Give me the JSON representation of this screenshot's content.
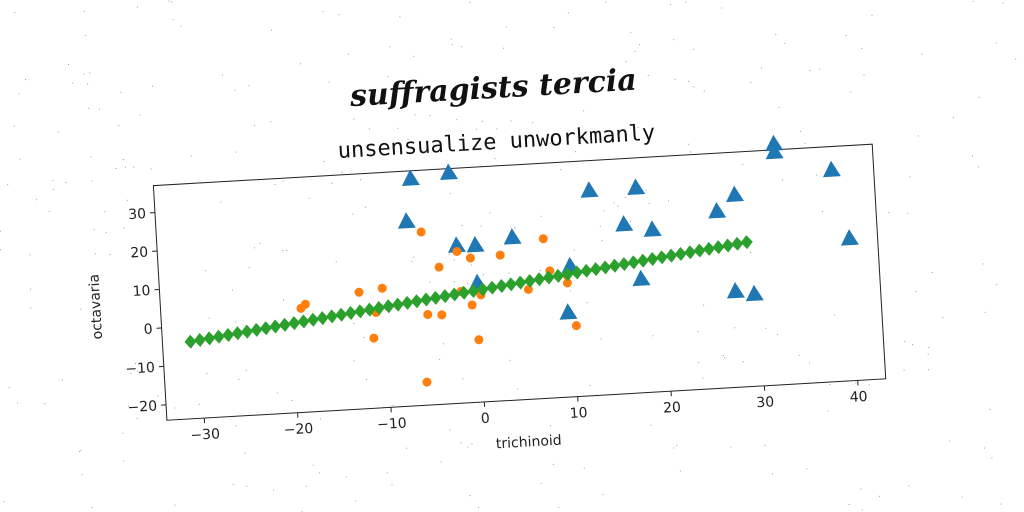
{
  "chart_data": {
    "type": "scatter",
    "suptitle": "suffragists tercia",
    "title": "unsensualize unworkmanly",
    "xlabel": "trichinoid",
    "ylabel": "octavaria",
    "xlim": [
      -34,
      43
    ],
    "ylim": [
      -24,
      37
    ],
    "xticks": [
      -30,
      -20,
      -10,
      0,
      10,
      20,
      30,
      40
    ],
    "yticks": [
      -20,
      -10,
      0,
      10,
      20,
      30
    ],
    "xtick_labels": [
      "−30",
      "−20",
      "−10",
      "0",
      "10",
      "20",
      "30",
      "40"
    ],
    "ytick_labels": [
      "−20",
      "−10",
      "0",
      "10",
      "20",
      "30"
    ],
    "grid": false,
    "series": [
      {
        "marker": "triangle",
        "color": "#1f77b4",
        "points": [
          [
            -6.5,
            35
          ],
          [
            -2.4,
            36
          ],
          [
            -7.2,
            24
          ],
          [
            -2,
            17
          ],
          [
            0,
            16.8
          ],
          [
            4,
            18.3
          ],
          [
            12.5,
            29.3
          ],
          [
            17.5,
            29.3
          ],
          [
            19,
            18.2
          ],
          [
            16,
            20
          ],
          [
            26,
            22
          ],
          [
            28,
            26
          ],
          [
            10,
            10
          ],
          [
            0,
            7
          ],
          [
            17.5,
            5.6
          ],
          [
            27.5,
            1
          ],
          [
            29.5,
            0
          ],
          [
            9.5,
            -2
          ],
          [
            32.5,
            38.6
          ],
          [
            32.5,
            36.5
          ],
          [
            38.5,
            31
          ],
          [
            40,
            13
          ]
        ]
      },
      {
        "marker": "circle",
        "color": "#ff7f0e",
        "points": [
          [
            -5.7,
            21
          ],
          [
            -4,
            11.6
          ],
          [
            -2,
            15.4
          ],
          [
            -0.6,
            13.5
          ],
          [
            2.6,
            13.8
          ],
          [
            7.3,
            17.4
          ],
          [
            -19,
            3
          ],
          [
            -18.5,
            4
          ],
          [
            -12.7,
            6.3
          ],
          [
            -10.2,
            7
          ],
          [
            -11,
            0.8
          ],
          [
            -5.5,
            -0.5
          ],
          [
            -4,
            -0.8
          ],
          [
            -1.8,
            5
          ],
          [
            -0.7,
            1.3
          ],
          [
            0.3,
            3.8
          ],
          [
            -0.2,
            -7.8
          ],
          [
            5.4,
            4.5
          ],
          [
            7.8,
            9
          ],
          [
            9.6,
            5.6
          ],
          [
            9.6,
            7.6
          ],
          [
            -11.4,
            -5.8
          ],
          [
            10.3,
            -5.6
          ],
          [
            -6,
            -18
          ]
        ]
      },
      {
        "marker": "diamond",
        "color": "#2ca02c",
        "line": {
          "x_start": -31,
          "x_end": 29,
          "y_start": -4,
          "y_end": 13.5,
          "count": 60
        }
      }
    ]
  }
}
